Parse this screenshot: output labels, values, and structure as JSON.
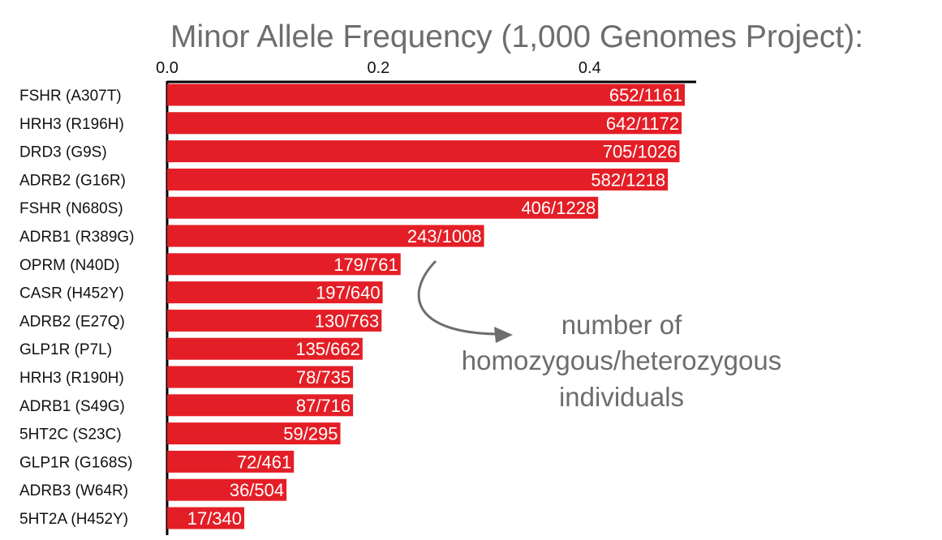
{
  "chart_data": {
    "type": "bar",
    "orientation": "horizontal",
    "title": "Minor Allele Frequency (1,000 Genomes Project):",
    "xlabel": "",
    "ylabel": "",
    "xlim": [
      0,
      0.5
    ],
    "x_ticks": [
      "0.0",
      "0.2",
      "0.4"
    ],
    "x_tick_values": [
      0.0,
      0.2,
      0.4
    ],
    "x_axis_position": "top",
    "grid": false,
    "bar_color": "#e41e26",
    "categories": [
      "FSHR (A307T)",
      "HRH3 (R196H)",
      "DRD3 (G9S)",
      "ADRB2 (G16R)",
      "FSHR (N680S)",
      "ADRB1 (R389G)",
      "OPRM (N40D)",
      "CASR (H452Y)",
      "ADRB2 (E27Q)",
      "GLP1R (P7L)",
      "HRH3 (R190H)",
      "ADRB1 (S49G)",
      "5HT2C (S23C)",
      "GLP1R (G168S)",
      "ADRB3 (W64R)",
      "5HT2A (H452Y)"
    ],
    "values": [
      0.49,
      0.487,
      0.485,
      0.474,
      0.408,
      0.3,
      0.221,
      0.204,
      0.203,
      0.185,
      0.176,
      0.176,
      0.164,
      0.12,
      0.113,
      0.073
    ],
    "data_labels": [
      "652/1161",
      "642/1172",
      "705/1026",
      "582/1218",
      "406/1228",
      "243/1008",
      "179/761",
      "197/640",
      "130/763",
      "135/662",
      "78/735",
      "87/716",
      "59/295",
      "72/461",
      "36/504",
      "17/340"
    ],
    "annotation": {
      "lines": [
        "number of",
        "homozygous/heterozygous",
        "individuals"
      ]
    }
  }
}
